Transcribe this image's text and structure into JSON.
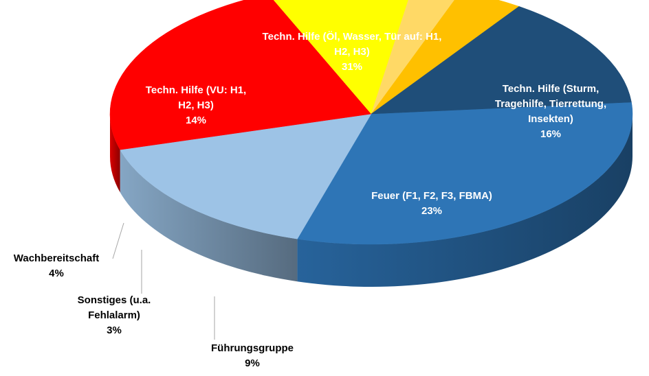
{
  "chart_data": {
    "type": "pie",
    "title": "",
    "slices": [
      {
        "label": [
          "Techn. Hilfe (Öl, Wasser, Tür auf: H1,",
          "H2, H3)"
        ],
        "value": 31,
        "value_label": "31%",
        "color": "#2e75b6"
      },
      {
        "label": [
          "Techn. Hilfe (Sturm,",
          "Tragehilfe, Tierrettung,",
          "Insekten)"
        ],
        "value": 16,
        "value_label": "16%",
        "color": "#9dc3e6"
      },
      {
        "label": [
          "Feuer (F1, F2, F3, FBMA)"
        ],
        "value": 23,
        "value_label": "23%",
        "color": "#ff0000"
      },
      {
        "label": [
          "Führungsgruppe"
        ],
        "value": 9,
        "value_label": "9%",
        "color": "#ffff00"
      },
      {
        "label": [
          "Sonstiges (u.a.",
          "Fehlalarm)"
        ],
        "value": 3,
        "value_label": "3%",
        "color": "#ffd966"
      },
      {
        "label": [
          "Wachbereitschaft"
        ],
        "value": 4,
        "value_label": "4%",
        "color": "#ffc000"
      },
      {
        "label": [
          "Techn. Hilfe (VU: H1,",
          "H2, H3)"
        ],
        "value": 14,
        "value_label": "14%",
        "color": "#1f4e79"
      }
    ]
  }
}
